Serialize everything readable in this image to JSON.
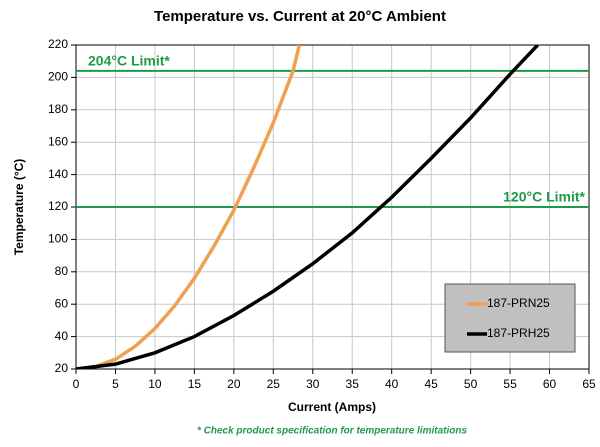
{
  "chart_data": {
    "type": "line",
    "title": "Temperature vs. Current at 20°C Ambient",
    "x_label": "Current (Amps)",
    "y_label": "Temperature (°C)",
    "footnote": "* Check product specification for temperature limitations",
    "xlim": [
      0,
      65
    ],
    "xticks": [
      0,
      5,
      10,
      15,
      20,
      25,
      30,
      35,
      40,
      45,
      50,
      55,
      60,
      65
    ],
    "ylim": [
      20,
      220
    ],
    "yticks": [
      20,
      40,
      60,
      80,
      100,
      120,
      140,
      160,
      180,
      200,
      220
    ],
    "grid": true,
    "legend": "lower right",
    "reference_lines": [
      {
        "value": 204,
        "label": "204°C Limit*",
        "color": "#1e9a4a"
      },
      {
        "value": 120,
        "label": "120°C  Limit*",
        "color": "#1e9a4a"
      }
    ],
    "series": [
      {
        "name": "187-PRN25",
        "color": "#f0a050",
        "x": [
          0,
          2.5,
          5,
          7.5,
          10,
          12.5,
          15,
          17.5,
          20,
          22.5,
          25,
          27.5,
          28.3
        ],
        "values": [
          20,
          21.5,
          26,
          34,
          45,
          59,
          76,
          96,
          118,
          144,
          172,
          204,
          220
        ]
      },
      {
        "name": "187-PRH25",
        "color": "#000000",
        "x": [
          0,
          5,
          10,
          15,
          20,
          25,
          30,
          35,
          40,
          45,
          50,
          55,
          58.5
        ],
        "values": [
          20,
          23,
          30,
          40,
          53,
          68,
          85,
          104,
          126,
          150,
          175,
          202,
          220
        ]
      }
    ]
  }
}
